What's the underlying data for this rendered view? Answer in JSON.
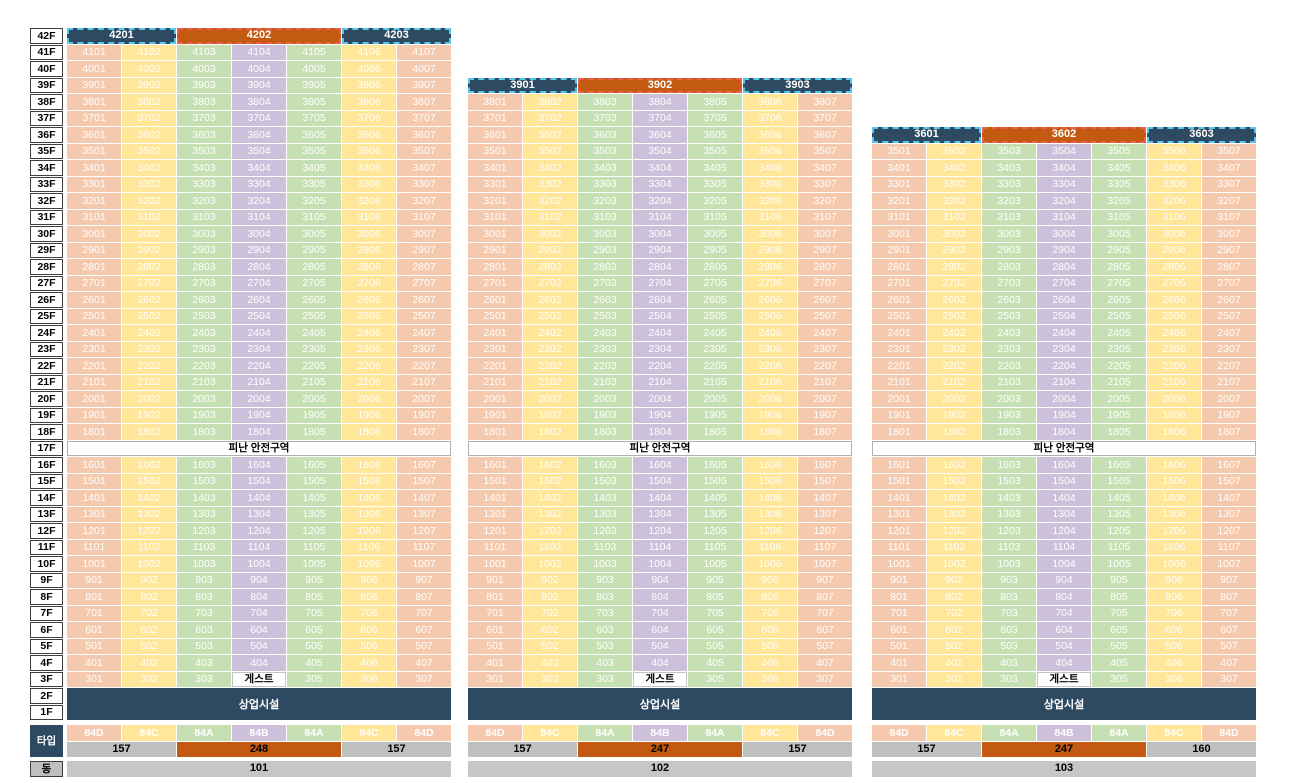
{
  "colors": {
    "navy": "#2E4A62",
    "orange": "#C45A11",
    "gray": "#BFBFBF",
    "gray2": "#C6C6C6",
    "selection_dash_blue": "#57C7EA",
    "selection_dash_red": "#E8604C",
    "columns": [
      "#F5C9AD",
      "#FFE699",
      "#C6E0B4",
      "#CCC0DA",
      "#C6E0B4",
      "#FFE699",
      "#F5C9AD"
    ]
  },
  "labels": {
    "refuge": "피난 안전구역",
    "guest": "게스트",
    "commercial": "상업시설",
    "type_axis": "타입",
    "dong_axis": "동"
  },
  "left_axis": {
    "floors": [
      "42F",
      "41F",
      "40F",
      "39F",
      "38F",
      "37F",
      "36F",
      "35F",
      "34F",
      "33F",
      "32F",
      "31F",
      "30F",
      "29F",
      "28F",
      "27F",
      "26F",
      "25F",
      "24F",
      "23F",
      "22F",
      "21F",
      "20F",
      "19F",
      "18F",
      "17F",
      "16F",
      "15F",
      "14F",
      "13F",
      "12F",
      "11F",
      "10F",
      "9F",
      "8F",
      "7F",
      "6F",
      "5F",
      "4F",
      "3F",
      "2F",
      "1F"
    ]
  },
  "grid": {
    "global_top_floor": 42,
    "lowest_unit_floor": 3,
    "refuge_floor": 17,
    "guest_cell": {
      "floor": 3,
      "column": 4
    },
    "commercial_floors": [
      "2F",
      "1F"
    ],
    "columns_per_floor": 7,
    "unit_number_rule": "floor*100 + column (e.g. 41F col 3 -> 4103)"
  },
  "buildings": [
    {
      "dong": "101",
      "top_floor": 42,
      "header": [
        "4201",
        "4202",
        "4203"
      ],
      "header_spans": [
        2,
        3,
        2
      ],
      "types": [
        "84D",
        "84C",
        "84A",
        "84B",
        "84A",
        "84C",
        "84D"
      ],
      "areas": [
        {
          "value": "157",
          "span": 2,
          "style": "gray"
        },
        {
          "value": "248",
          "span": 3,
          "style": "orange"
        },
        {
          "value": "157",
          "span": 2,
          "style": "gray"
        }
      ]
    },
    {
      "dong": "102",
      "top_floor": 39,
      "header": [
        "3901",
        "3902",
        "3903"
      ],
      "header_spans": [
        2,
        3,
        2
      ],
      "types": [
        "84D",
        "84C",
        "84A",
        "84B",
        "84A",
        "84C",
        "84D"
      ],
      "areas": [
        {
          "value": "157",
          "span": 2,
          "style": "gray"
        },
        {
          "value": "247",
          "span": 3,
          "style": "orange"
        },
        {
          "value": "157",
          "span": 2,
          "style": "gray"
        }
      ]
    },
    {
      "dong": "103",
      "top_floor": 36,
      "header": [
        "3601",
        "3602",
        "3603"
      ],
      "header_spans": [
        2,
        3,
        2
      ],
      "types": [
        "84D",
        "84C",
        "84A",
        "84B",
        "84A",
        "84C",
        "84D"
      ],
      "areas": [
        {
          "value": "157",
          "span": 2,
          "style": "gray"
        },
        {
          "value": "247",
          "span": 3,
          "style": "orange"
        },
        {
          "value": "160",
          "span": 2,
          "style": "gray"
        }
      ]
    }
  ]
}
